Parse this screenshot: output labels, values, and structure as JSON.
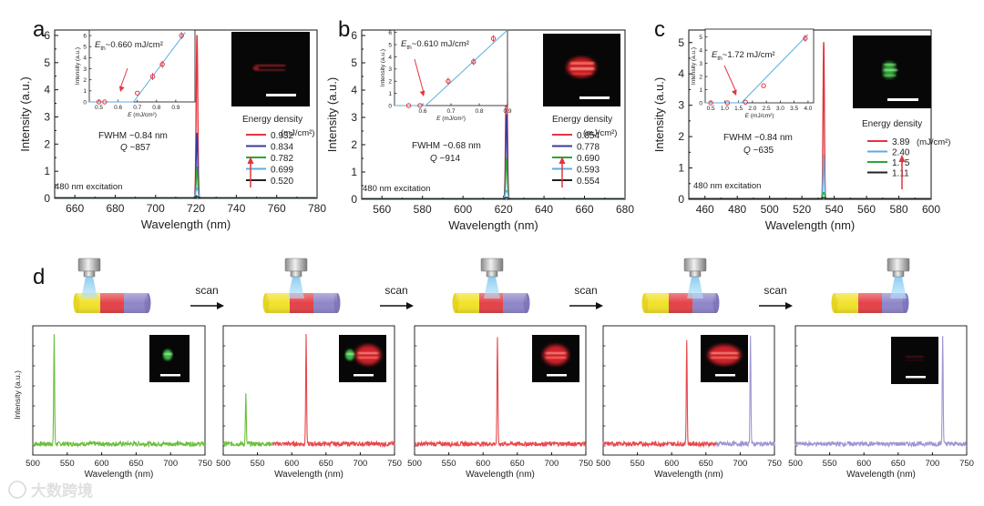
{
  "panels": {
    "a": {
      "letter": "a",
      "fwhm": "FWHM ~0.84 nm",
      "q_prefix": "Q",
      "q_value": " ~857",
      "excitation": "480 nm excitation",
      "legend_title": "Energy density",
      "legend_unit": "(mJ/cm²)",
      "threshold": "~0.660 mJ/cm²",
      "eth_sym": "E",
      "eth_sub": "th"
    },
    "b": {
      "letter": "b",
      "fwhm": "FWHM ~0.68 nm",
      "q_prefix": "Q",
      "q_value": " ~914",
      "excitation": "480 nm excitation",
      "legend_title": "Energy density",
      "legend_unit": "(mJ/cm²)",
      "threshold": "~0.610 mJ/cm²",
      "eth_sym": "E",
      "eth_sub": "th"
    },
    "c": {
      "letter": "c",
      "fwhm": "FWHM ~0.84 nm",
      "q_prefix": "Q",
      "q_value": " ~635",
      "excitation": "480 nm excitation",
      "legend_title": "Energy density",
      "legend_unit": "(mJ/cm²)",
      "threshold": "~1.72 mJ/cm²",
      "eth_sym": "E",
      "eth_sub": "th"
    },
    "d": {
      "letter": "d",
      "scan_label": "scan"
    }
  },
  "watermark": "大数跨境",
  "colors": {
    "red": "#e3353e",
    "blue": "#3a3a9c",
    "green": "#2aa63a",
    "lightblue": "#5aaee0",
    "black": "#222222",
    "yellow": "#f2e22a",
    "purple": "#8f86c9",
    "d_green": "#6cbf3c",
    "d_red": "#e8474c",
    "d_purple": "#9d96d4"
  },
  "chart_data": [
    {
      "id": "a",
      "type": "line",
      "xlabel": "Wavelength (nm)",
      "ylabel": "Intensity (a.u.)",
      "xlim": [
        650,
        780
      ],
      "ylim": [
        0,
        6.2
      ],
      "xticks": [
        660,
        680,
        700,
        720,
        740,
        760,
        780
      ],
      "yticks": [
        0,
        1,
        2,
        3,
        4,
        5,
        6
      ],
      "peak_center": 720.5,
      "series": [
        {
          "name": "0.932",
          "peak": 6.0,
          "color": "#e3353e"
        },
        {
          "name": "0.834",
          "peak": 2.4,
          "color": "#3a3a9c"
        },
        {
          "name": "0.782",
          "peak": 1.1,
          "color": "#2aa63a"
        },
        {
          "name": "0.699",
          "peak": 0.35,
          "color": "#5aaee0"
        },
        {
          "name": "0.520",
          "peak": 0.05,
          "color": "#222222"
        }
      ],
      "inset": {
        "xlabel": "E (mJ/cm²)",
        "ylabel": "Intensity (a.u.)",
        "xlim": [
          0.45,
          1.0
        ],
        "ylim": [
          0,
          6.5
        ],
        "xticks": [
          0.5,
          0.6,
          0.7,
          0.8,
          0.9
        ],
        "yticks": [
          0,
          1,
          2,
          3,
          4,
          5,
          6
        ],
        "points": [
          [
            0.5,
            0.0
          ],
          [
            0.53,
            0.0
          ],
          [
            0.7,
            0.8
          ],
          [
            0.78,
            2.3
          ],
          [
            0.83,
            3.4
          ],
          [
            0.93,
            6.0
          ]
        ],
        "fit": [
          [
            0.68,
            0
          ],
          [
            0.95,
            6.3
          ]
        ],
        "baseline": [
          [
            0.45,
            0
          ],
          [
            0.68,
            0
          ]
        ]
      }
    },
    {
      "id": "b",
      "type": "line",
      "xlabel": "Wavelength (nm)",
      "ylabel": "Intensity (a.u.)",
      "xlim": [
        550,
        680
      ],
      "ylim": [
        0,
        6.2
      ],
      "xticks": [
        560,
        580,
        600,
        620,
        640,
        660,
        680
      ],
      "yticks": [
        0,
        1,
        2,
        3,
        4,
        5,
        6
      ],
      "peak_center": 621.5,
      "series": [
        {
          "name": "0.854",
          "peak": 5.6,
          "color": "#e3353e"
        },
        {
          "name": "0.778",
          "peak": 3.1,
          "color": "#3a3a9c"
        },
        {
          "name": "0.690",
          "peak": 1.5,
          "color": "#2aa63a"
        },
        {
          "name": "0.593",
          "peak": 0.3,
          "color": "#5aaee0"
        },
        {
          "name": "0.554",
          "peak": 0.05,
          "color": "#222222"
        }
      ],
      "inset": {
        "xlabel": "E (mJ/cm²)",
        "ylabel": "Intensity (a.u.)",
        "xlim": [
          0.5,
          0.9
        ],
        "ylim": [
          0,
          6.2
        ],
        "xticks": [
          0.6,
          0.7,
          0.8,
          0.9
        ],
        "yticks": [
          0,
          1,
          2,
          3,
          4,
          5,
          6
        ],
        "points": [
          [
            0.55,
            0.0
          ],
          [
            0.59,
            0.0
          ],
          [
            0.69,
            2.0
          ],
          [
            0.78,
            3.6
          ],
          [
            0.85,
            5.5
          ]
        ],
        "fit": [
          [
            0.61,
            0
          ],
          [
            0.9,
            6.2
          ]
        ],
        "baseline": [
          [
            0.5,
            0
          ],
          [
            0.61,
            0
          ]
        ]
      }
    },
    {
      "id": "c",
      "type": "line",
      "xlabel": "Wavelength (nm)",
      "ylabel": "Intensity (a.u.)",
      "xlim": [
        450,
        600
      ],
      "ylim": [
        0,
        5.4
      ],
      "xticks": [
        460,
        480,
        500,
        520,
        540,
        560,
        580,
        600
      ],
      "yticks": [
        0,
        1,
        2,
        3,
        4,
        5
      ],
      "peak_center": 533.5,
      "series": [
        {
          "name": "3.89",
          "peak": 5.0,
          "color": "#e3353e"
        },
        {
          "name": "2.40",
          "peak": 1.4,
          "color": "#5aaee0"
        },
        {
          "name": "1.75",
          "peak": 0.2,
          "color": "#2aa63a"
        },
        {
          "name": "1.11",
          "peak": 0.04,
          "color": "#222222"
        }
      ],
      "inset": {
        "xlabel": "E (mJ/cm²)",
        "ylabel": "Intensity (a.u.)",
        "xlim": [
          0.3,
          4.2
        ],
        "ylim": [
          0,
          5.6
        ],
        "xticks": [
          0.5,
          1.0,
          1.5,
          2.0,
          2.5,
          3.0,
          3.5,
          4.0
        ],
        "yticks": [
          0,
          1,
          2,
          3,
          4,
          5
        ],
        "points": [
          [
            0.5,
            0.0
          ],
          [
            1.1,
            0.0
          ],
          [
            1.75,
            0.05
          ],
          [
            2.4,
            1.3
          ],
          [
            3.9,
            4.9
          ]
        ],
        "fit": [
          [
            1.6,
            0
          ],
          [
            4.0,
            5.2
          ]
        ],
        "baseline": [
          [
            0.3,
            0
          ],
          [
            1.8,
            0
          ]
        ]
      }
    },
    {
      "id": "d1",
      "type": "line",
      "xlabel": "Wavelength (nm)",
      "ylabel": "Intensity (a.u.)",
      "xlim": [
        500,
        750
      ],
      "xticks": [
        500,
        550,
        600,
        650,
        700,
        750
      ],
      "peaks": [
        {
          "center": 531,
          "height": 0.85,
          "color": "#6cbf3c"
        }
      ],
      "segments": [
        {
          "from": 500,
          "to": 750,
          "color": "#6cbf3c"
        }
      ]
    },
    {
      "id": "d2",
      "type": "line",
      "xlabel": "Wavelength (nm)",
      "ylabel": "",
      "xlim": [
        500,
        750
      ],
      "xticks": [
        500,
        550,
        600,
        650,
        700,
        750
      ],
      "peaks": [
        {
          "center": 533,
          "height": 0.38,
          "color": "#6cbf3c"
        },
        {
          "center": 621,
          "height": 0.85,
          "color": "#e8474c"
        }
      ],
      "segments": [
        {
          "from": 500,
          "to": 572,
          "color": "#6cbf3c"
        },
        {
          "from": 572,
          "to": 750,
          "color": "#e8474c"
        }
      ]
    },
    {
      "id": "d3",
      "type": "line",
      "xlabel": "Wavelength (nm)",
      "ylabel": "",
      "xlim": [
        500,
        750
      ],
      "xticks": [
        500,
        550,
        600,
        650,
        700,
        750
      ],
      "peaks": [
        {
          "center": 621,
          "height": 0.83,
          "color": "#e8474c"
        }
      ],
      "segments": [
        {
          "from": 500,
          "to": 750,
          "color": "#e8474c"
        }
      ]
    },
    {
      "id": "d4",
      "type": "line",
      "xlabel": "Wavelength (nm)",
      "ylabel": "",
      "xlim": [
        500,
        750
      ],
      "xticks": [
        500,
        550,
        600,
        650,
        700,
        750
      ],
      "peaks": [
        {
          "center": 622,
          "height": 0.82,
          "color": "#e8474c"
        },
        {
          "center": 715,
          "height": 0.85,
          "color": "#9d96d4"
        }
      ],
      "segments": [
        {
          "from": 500,
          "to": 665,
          "color": "#e8474c"
        },
        {
          "from": 665,
          "to": 750,
          "color": "#9d96d4"
        }
      ]
    },
    {
      "id": "d5",
      "type": "line",
      "xlabel": "Wavelength (nm)",
      "ylabel": "",
      "xlim": [
        500,
        750
      ],
      "xticks": [
        500,
        550,
        600,
        650,
        700,
        750
      ],
      "peaks": [
        {
          "center": 715,
          "height": 0.85,
          "color": "#9d96d4"
        }
      ],
      "segments": [
        {
          "from": 500,
          "to": 750,
          "color": "#9d96d4"
        }
      ]
    }
  ]
}
